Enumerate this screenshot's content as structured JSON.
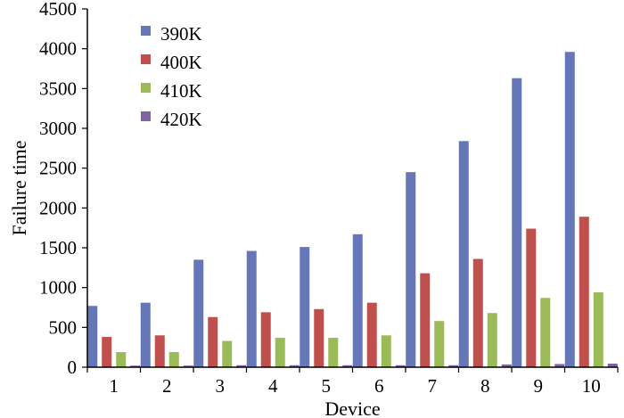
{
  "chart_data": {
    "type": "bar",
    "xlabel": "Device",
    "ylabel": "Failure time",
    "ylim": [
      0,
      4500
    ],
    "y_ticks": [
      0,
      500,
      1000,
      1500,
      2000,
      2500,
      3000,
      3500,
      4000,
      4500
    ],
    "categories": [
      "1",
      "2",
      "3",
      "4",
      "5",
      "6",
      "7",
      "8",
      "9",
      "10"
    ],
    "grid": false,
    "legend_position": "top-left",
    "series": [
      {
        "name": "390K",
        "color": "#6677b7",
        "values": [
          770,
          810,
          1350,
          1460,
          1510,
          1670,
          2450,
          2840,
          3630,
          3960
        ]
      },
      {
        "name": "400K",
        "color": "#c0504d",
        "values": [
          380,
          400,
          630,
          690,
          730,
          810,
          1180,
          1360,
          1740,
          1890
        ]
      },
      {
        "name": "410K",
        "color": "#9bbb59",
        "values": [
          190,
          190,
          330,
          370,
          370,
          400,
          580,
          680,
          870,
          940
        ]
      },
      {
        "name": "420K",
        "color": "#8064a2",
        "values": [
          20,
          20,
          25,
          25,
          25,
          25,
          25,
          35,
          40,
          45
        ]
      }
    ]
  }
}
